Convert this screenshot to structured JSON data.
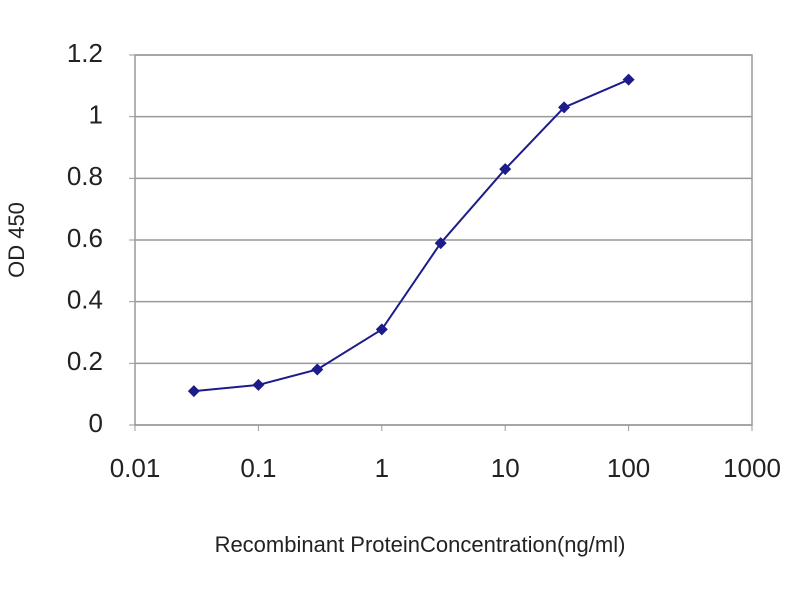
{
  "chart_data": {
    "type": "line",
    "x": [
      0.03,
      0.1,
      0.3,
      1,
      3,
      10,
      30,
      100
    ],
    "values": [
      0.11,
      0.13,
      0.18,
      0.31,
      0.59,
      0.83,
      1.03,
      1.12
    ],
    "color": "#1c1c8a",
    "x_label": "Recombinant ProteinConcentration(ng/ml)",
    "y_label": "OD 450",
    "xscale": "log",
    "xlim": [
      0.01,
      1000
    ],
    "xticks": [
      0.01,
      0.1,
      1,
      10,
      100,
      1000
    ],
    "ylim": [
      0,
      1.2
    ],
    "yticks": [
      0,
      0.2,
      0.4,
      0.6,
      0.8,
      1,
      1.2
    ],
    "grid": true
  }
}
